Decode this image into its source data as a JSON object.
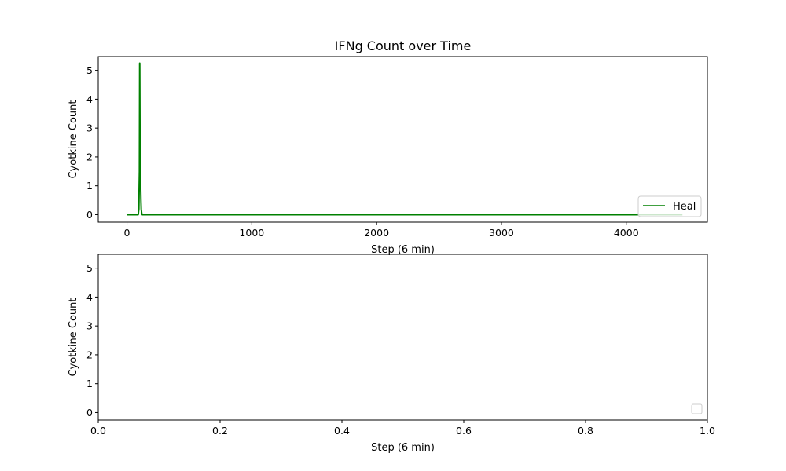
{
  "chart_data": [
    {
      "type": "line",
      "title": "IFNg Count over Time",
      "xlabel": "Step (6 min)",
      "ylabel": "Cyotkine Count",
      "xlim": [
        -230,
        4650
      ],
      "ylim": [
        -0.26,
        5.48
      ],
      "xticks": [
        0,
        1000,
        2000,
        3000,
        4000
      ],
      "xtick_labels": [
        "0",
        "1000",
        "2000",
        "3000",
        "4000"
      ],
      "yticks": [
        0,
        1,
        2,
        3,
        4,
        5
      ],
      "ytick_labels": [
        "0",
        "1",
        "2",
        "3",
        "4",
        "5"
      ],
      "grid": false,
      "legend_position": "lower-right",
      "series": [
        {
          "name": "Heal",
          "color": "#008000",
          "x": [
            0,
            90,
            95,
            100,
            102,
            104,
            106,
            108,
            110,
            112,
            114,
            118,
            122,
            130,
            4450
          ],
          "y": [
            0,
            0,
            0.2,
            1.5,
            5.25,
            2.8,
            1.6,
            2.3,
            0.9,
            0.5,
            0.2,
            0.05,
            0,
            0,
            0
          ]
        }
      ]
    },
    {
      "type": "line",
      "title": "",
      "xlabel": "Step (6 min)",
      "ylabel": "Cyotkine Count",
      "xlim": [
        0.0,
        1.0
      ],
      "ylim": [
        -0.26,
        5.48
      ],
      "xticks": [
        0.0,
        0.2,
        0.4,
        0.6,
        0.8,
        1.0
      ],
      "xtick_labels": [
        "0.0",
        "0.2",
        "0.4",
        "0.6",
        "0.8",
        "1.0"
      ],
      "yticks": [
        0,
        1,
        2,
        3,
        4,
        5
      ],
      "ytick_labels": [
        "0",
        "1",
        "2",
        "3",
        "4",
        "5"
      ],
      "grid": false,
      "legend_position": "lower-right",
      "series": []
    }
  ]
}
